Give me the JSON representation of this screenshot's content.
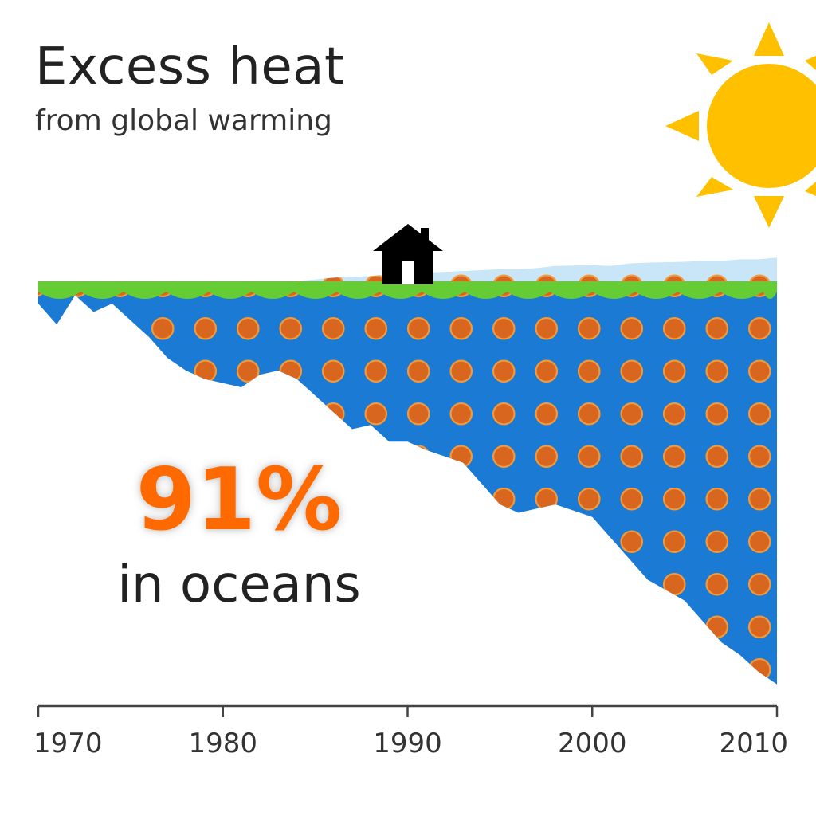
{
  "title": "Excess heat",
  "subtitle": "from global warming",
  "highlight": {
    "value": "91%",
    "label": "in oceans"
  },
  "colors": {
    "ocean": "#1a7ad4",
    "heat_dot": "#d9661f",
    "dot_ring": "#f29a3a",
    "land": "#66cc33",
    "atmosphere": "#c8e6f8",
    "sun": "#ffc000",
    "highlight_text": "#ff6a00"
  },
  "icons": [
    "sun-icon",
    "house-icon"
  ],
  "chart_data": {
    "type": "area",
    "title": "Excess heat",
    "subtitle": "from global warming",
    "xlabel": "",
    "ylabel": "",
    "xlim": [
      1970,
      2010
    ],
    "ylim": [
      -1,
      0.08
    ],
    "x_ticks": [
      1970,
      1980,
      1990,
      2000,
      2010
    ],
    "grid": false,
    "legend": "none",
    "x": [
      1970,
      1971,
      1972,
      1973,
      1974,
      1976,
      1977,
      1978,
      1979,
      1980,
      1981,
      1982,
      1983,
      1984,
      1985,
      1986,
      1987,
      1988,
      1989,
      1990,
      1991,
      1993,
      1994,
      1995,
      1996,
      1997,
      1998,
      2000,
      2001,
      2002,
      2003,
      2005,
      2006,
      2007,
      2008,
      2009,
      2010
    ],
    "series": [
      {
        "values": [
          -0.04,
          -0.09,
          -0.02,
          -0.06,
          -0.04,
          -0.12,
          -0.17,
          -0.2,
          -0.22,
          -0.23,
          -0.24,
          -0.21,
          -0.2,
          -0.22,
          -0.26,
          -0.3,
          -0.34,
          -0.33,
          -0.37,
          -0.37,
          -0.39,
          -0.42,
          -0.47,
          -0.52,
          -0.54,
          -0.53,
          -0.52,
          -0.55,
          -0.6,
          -0.65,
          -0.7,
          -0.75,
          -0.8,
          -0.85,
          -0.88,
          -0.92,
          -0.95
        ]
      },
      {
        "values": [
          0.0,
          0.0,
          0.0,
          0.0,
          0.0,
          0.0,
          0.0,
          0.0,
          0.0,
          0.0,
          0.0,
          0.0,
          0.0,
          0.0,
          0.0,
          0.0,
          0.0,
          0.0,
          0.0,
          0.0,
          0.0,
          0.0,
          0.0,
          0.0,
          0.0,
          0.0,
          0.0,
          0.0,
          0.0,
          0.0,
          0.0,
          0.0,
          0.0,
          0.0,
          0.0,
          0.0,
          0.0
        ]
      },
      {
        "values": [
          0.0,
          0.0,
          0.0,
          0.0,
          0.0,
          0.005,
          0.006,
          0.008,
          0.01,
          0.01,
          0.011,
          0.012,
          0.01,
          0.014,
          0.018,
          0.022,
          0.024,
          0.026,
          0.03,
          0.034,
          0.034,
          0.038,
          0.04,
          0.042,
          0.042,
          0.045,
          0.05,
          0.052,
          0.05,
          0.056,
          0.058,
          0.06,
          0.062,
          0.062,
          0.066,
          0.066,
          0.07
        ]
      }
    ]
  }
}
